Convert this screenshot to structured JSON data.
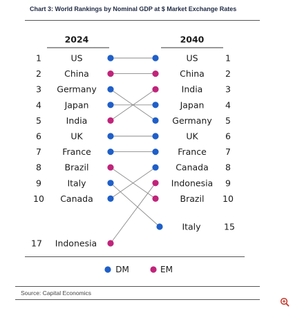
{
  "title": "Chart 3: World Rankings by Nominal GDP at $ Market Exchange Rates",
  "source": "Source: Capital Economics",
  "colors": {
    "dm": "#1f5fc8",
    "em": "#c0247a",
    "line": "#8a8a8a",
    "text": "#1a1a1a"
  },
  "chart_data": {
    "type": "slope",
    "columns": [
      "2024",
      "2040"
    ],
    "legend": [
      {
        "key": "DM",
        "label": "DM"
      },
      {
        "key": "EM",
        "label": "EM"
      }
    ],
    "countries": [
      {
        "name": "US",
        "group": "DM",
        "rank_2024": 1,
        "rank_2040": 1
      },
      {
        "name": "China",
        "group": "EM",
        "rank_2024": 2,
        "rank_2040": 2
      },
      {
        "name": "Germany",
        "group": "DM",
        "rank_2024": 3,
        "rank_2040": 5
      },
      {
        "name": "Japan",
        "group": "DM",
        "rank_2024": 4,
        "rank_2040": 4
      },
      {
        "name": "India",
        "group": "EM",
        "rank_2024": 5,
        "rank_2040": 3
      },
      {
        "name": "UK",
        "group": "DM",
        "rank_2024": 6,
        "rank_2040": 6
      },
      {
        "name": "France",
        "group": "DM",
        "rank_2024": 7,
        "rank_2040": 7
      },
      {
        "name": "Brazil",
        "group": "EM",
        "rank_2024": 8,
        "rank_2040": 10
      },
      {
        "name": "Italy",
        "group": "DM",
        "rank_2024": 9,
        "rank_2040": 15
      },
      {
        "name": "Canada",
        "group": "DM",
        "rank_2024": 10,
        "rank_2040": 8
      },
      {
        "name": "Indonesia",
        "group": "EM",
        "rank_2024": 17,
        "rank_2040": 9
      }
    ]
  }
}
